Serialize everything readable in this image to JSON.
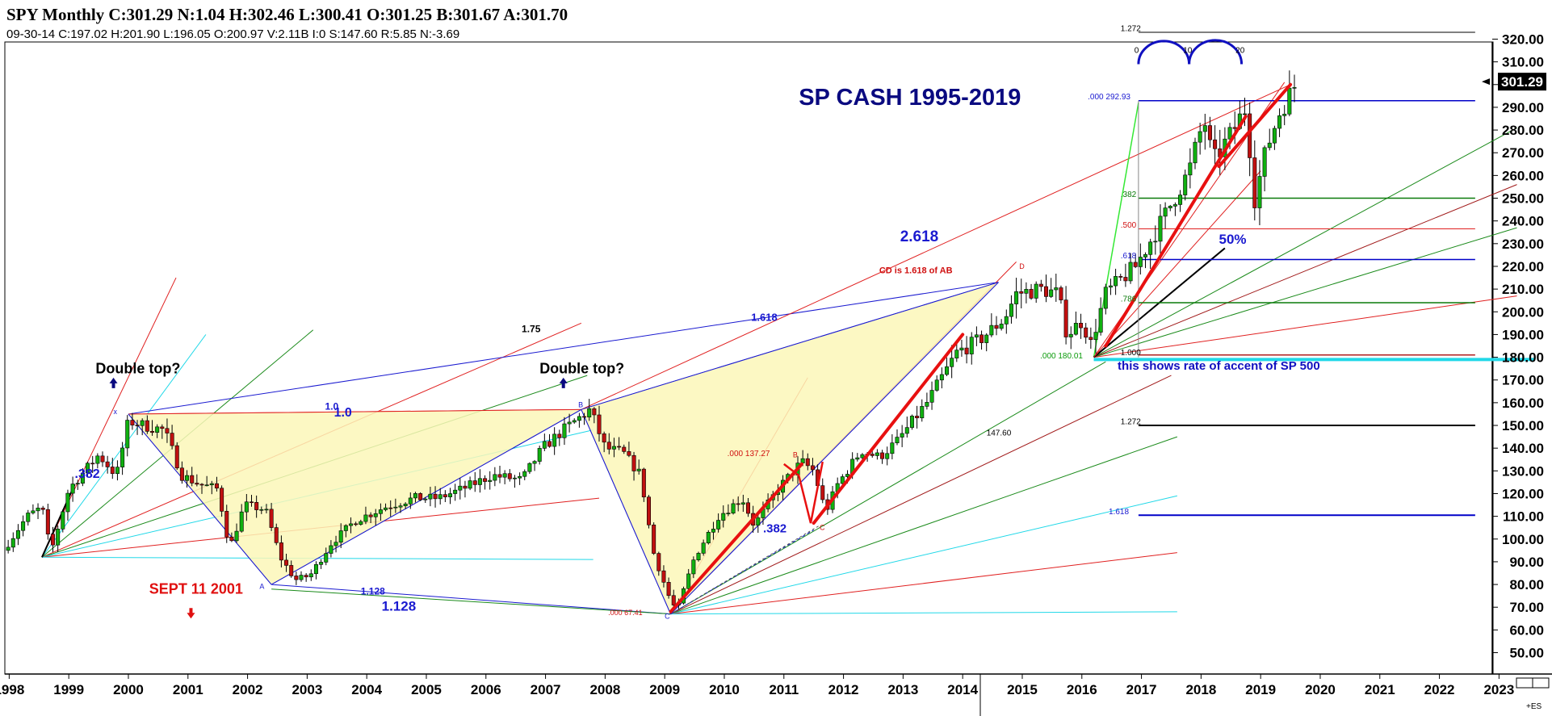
{
  "header": {
    "line1": "SPY Monthly C:301.29 N:1.04 H:302.46 L:300.41 O:301.25 B:301.67 A:301.70",
    "line2": "09-30-14  C:197.02  H:201.90  L:196.05  O:200.97  V:2.11B  I:0  S:147.60  R:5.85  N:-3.69"
  },
  "colors": {
    "bull": "#10b010",
    "bear": "#c01010",
    "harmonic_fill": "#fbf7b8",
    "blue": "#1a1ad0",
    "red": "#e02020",
    "green": "#1a8a1a",
    "cyan": "#20d8e8"
  },
  "chart_data": {
    "type": "candlestick",
    "title": "SP CASH 1995-2019",
    "x_range": [
      1997.9,
      2023.6
    ],
    "y_range": [
      45,
      325
    ],
    "x_ticks": [
      "1998",
      "1999",
      "2000",
      "2001",
      "2002",
      "2003",
      "2004",
      "2005",
      "2006",
      "2007",
      "2008",
      "2009",
      "2010",
      "2011",
      "2012",
      "2013",
      "2014",
      "2015",
      "2016",
      "2017",
      "2018",
      "2019",
      "2020",
      "2021",
      "2022",
      "2023"
    ],
    "y_ticks": [
      "50.00",
      "60.00",
      "70.00",
      "80.00",
      "90.00",
      "100.00",
      "110.00",
      "120.00",
      "130.00",
      "140.00",
      "150.00",
      "160.00",
      "170.00",
      "180.00",
      "190.00",
      "200.00",
      "210.00",
      "220.00",
      "230.00",
      "240.00",
      "250.00",
      "260.00",
      "270.00",
      "280.00",
      "290.00",
      "300.00",
      "310.00",
      "320.00"
    ],
    "last_price": "301.29",
    "price_path": [
      [
        1997.9,
        95
      ],
      [
        1998.3,
        110
      ],
      [
        1998.55,
        114
      ],
      [
        1998.7,
        94
      ],
      [
        1999.0,
        122
      ],
      [
        1999.5,
        137
      ],
      [
        1999.8,
        128
      ],
      [
        2000.0,
        152
      ],
      [
        2000.25,
        150
      ],
      [
        2000.6,
        148
      ],
      [
        2000.9,
        128
      ],
      [
        2001.2,
        124
      ],
      [
        2001.5,
        122
      ],
      [
        2001.7,
        96
      ],
      [
        2001.95,
        115
      ],
      [
        2002.3,
        113
      ],
      [
        2002.55,
        92
      ],
      [
        2002.8,
        82
      ],
      [
        2003.05,
        84
      ],
      [
        2003.4,
        98
      ],
      [
        2003.8,
        108
      ],
      [
        2004.3,
        114
      ],
      [
        2004.8,
        118
      ],
      [
        2005.2,
        118
      ],
      [
        2005.6,
        122
      ],
      [
        2006.1,
        128
      ],
      [
        2006.6,
        126
      ],
      [
        2006.95,
        140
      ],
      [
        2007.3,
        148
      ],
      [
        2007.75,
        157
      ],
      [
        2008.0,
        140
      ],
      [
        2008.3,
        138
      ],
      [
        2008.6,
        128
      ],
      [
        2008.8,
        95
      ],
      [
        2009.05,
        76
      ],
      [
        2009.2,
        68
      ],
      [
        2009.5,
        92
      ],
      [
        2009.9,
        110
      ],
      [
        2010.3,
        118
      ],
      [
        2010.5,
        106
      ],
      [
        2010.9,
        122
      ],
      [
        2011.3,
        134
      ],
      [
        2011.5,
        130
      ],
      [
        2011.7,
        112
      ],
      [
        2011.9,
        124
      ],
      [
        2012.3,
        139
      ],
      [
        2012.6,
        136
      ],
      [
        2012.9,
        143
      ],
      [
        2013.4,
        160
      ],
      [
        2013.9,
        182
      ],
      [
        2014.3,
        188
      ],
      [
        2014.7,
        197
      ],
      [
        2014.9,
        208
      ],
      [
        2015.3,
        210
      ],
      [
        2015.6,
        208
      ],
      [
        2015.75,
        190
      ],
      [
        2016.0,
        196
      ],
      [
        2016.15,
        186
      ],
      [
        2016.4,
        208
      ],
      [
        2016.9,
        220
      ],
      [
        2017.3,
        238
      ],
      [
        2017.8,
        262
      ],
      [
        2018.05,
        285
      ],
      [
        2018.2,
        266
      ],
      [
        2018.5,
        278
      ],
      [
        2018.75,
        290
      ],
      [
        2018.9,
        250
      ],
      [
        2019.1,
        272
      ],
      [
        2019.35,
        290
      ],
      [
        2019.5,
        296
      ],
      [
        2019.6,
        301
      ]
    ],
    "annotations": {
      "title": "SP CASH 1995-2019",
      "double_top_1": "Double top?",
      "double_top_2": "Double top?",
      "sept11": "SEPT 11 2001",
      "rate_note": "this shows rate of accent of SP 500",
      "cd_note": "CD is 1.618 of AB",
      "ext_2618": "2.618",
      "fib_1618": "1.618",
      "fib_175": "1.75",
      "fib_10a": "1.0",
      "fib_10b": "1.0",
      "fib_382a": ".382",
      "fib_382b": ".382",
      "fib_1128a": "1.128",
      "fib_1128b": "1.128",
      "pct50": "50%",
      "lvl_000_29293": ".000  292.93",
      "lvl_382": ".382",
      "lvl_500": ".500",
      "lvl_618": ".618",
      "lvl_786": ".786",
      "lvl_1000": "1.000",
      "lvl_000_18001": ".000  180.01",
      "lvl_1272": "1.272",
      "lvl_1272top": "1.272",
      "lvl_1618": "1.618",
      "val_14760": "147.60",
      "lvl_000_13727": ".000  137.27",
      "lvl_000_6741": ".000  67.41",
      "cyc_0": "0",
      "cyc_10": "10",
      "cyc_20": "20",
      "pt_x": "x",
      "pt_a": "A",
      "pt_b": "B",
      "pt_b2": "B",
      "pt_c": "C",
      "pt_c2": "C",
      "pt_d": "D"
    }
  }
}
